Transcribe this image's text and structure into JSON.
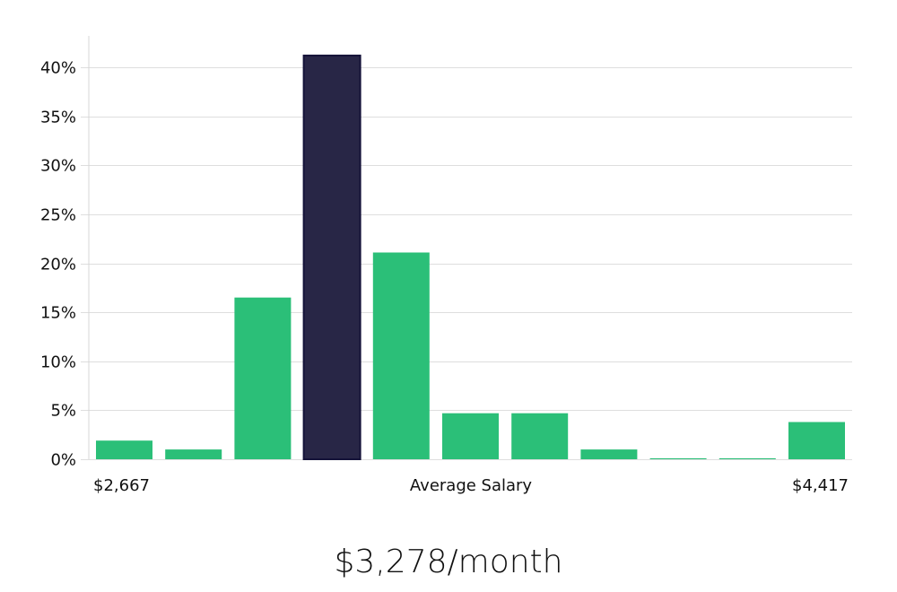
{
  "headline": "$3,278/month",
  "chart_data": {
    "type": "bar",
    "xlabel": "Average Salary",
    "x_left_label": "$2,667",
    "x_right_label": "$4,417",
    "ylabel": "",
    "ylim": [
      0,
      43
    ],
    "yticks": [
      0,
      5,
      10,
      15,
      20,
      25,
      30,
      35,
      40
    ],
    "ytick_labels": [
      "0%",
      "5%",
      "10%",
      "15%",
      "20%",
      "25%",
      "30%",
      "35%",
      "40%"
    ],
    "grid": true,
    "values": [
      1.9,
      1.0,
      16.5,
      41.2,
      21.1,
      4.7,
      4.7,
      1.0,
      0.1,
      0.1,
      3.8
    ],
    "highlight_index": 3,
    "colors": {
      "bar": "#2bbf78",
      "highlight": "#282646",
      "highlight_border": "#141238"
    }
  }
}
